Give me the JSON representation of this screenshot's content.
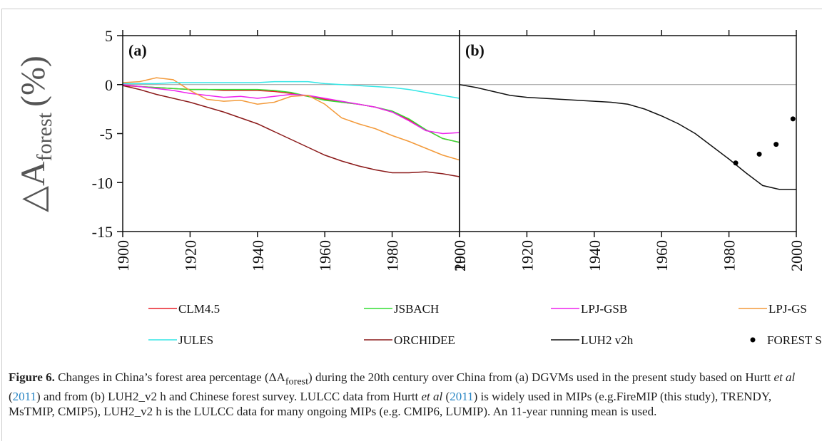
{
  "chart_data": [
    {
      "type": "line",
      "panel_label": "(a)",
      "ylabel": {
        "main": "△A",
        "sub": "forest",
        "unit": "(%)"
      },
      "x": [
        1900,
        1905,
        1910,
        1915,
        1920,
        1925,
        1930,
        1935,
        1940,
        1945,
        1950,
        1955,
        1960,
        1965,
        1970,
        1975,
        1980,
        1985,
        1990,
        1995,
        2000
      ],
      "xlim": [
        1900,
        2000
      ],
      "xticks": [
        1900,
        1920,
        1940,
        1960,
        1980,
        2000
      ],
      "ylim": [
        -15,
        5
      ],
      "yticks": [
        5,
        0,
        -5,
        -10,
        -15
      ],
      "hline": 0,
      "series": [
        {
          "name": "CLM4.5",
          "color": "#e8202a",
          "values": [
            -0.1,
            -0.2,
            -0.3,
            -0.4,
            -0.5,
            -0.5,
            -0.6,
            -0.6,
            -0.6,
            -0.7,
            -0.9,
            -1.2,
            -1.5,
            -1.8,
            -2.0,
            -2.3,
            -2.8,
            -3.6,
            -4.6,
            -5.5,
            -5.9
          ]
        },
        {
          "name": "JSBACH",
          "color": "#33dd33",
          "values": [
            0,
            -0.2,
            -0.3,
            -0.4,
            -0.5,
            -0.5,
            -0.5,
            -0.5,
            -0.5,
            -0.6,
            -0.8,
            -1.2,
            -1.6,
            -1.8,
            -2.0,
            -2.3,
            -2.7,
            -3.5,
            -4.6,
            -5.5,
            -5.9
          ]
        },
        {
          "name": "LPJ-GSB",
          "color": "#ee22ee",
          "values": [
            0,
            -0.2,
            -0.4,
            -0.6,
            -0.9,
            -1.1,
            -1.3,
            -1.2,
            -1.4,
            -1.2,
            -1.0,
            -1.1,
            -1.4,
            -1.7,
            -2.0,
            -2.3,
            -2.8,
            -3.7,
            -4.7,
            -5.0,
            -4.9
          ]
        },
        {
          "name": "LPJ-GS",
          "color": "#f39a3a",
          "values": [
            0.2,
            0.3,
            0.7,
            0.5,
            -0.6,
            -1.5,
            -1.7,
            -1.6,
            -2.0,
            -1.8,
            -1.2,
            -1.1,
            -2.0,
            -3.4,
            -4.0,
            -4.5,
            -5.2,
            -5.8,
            -6.5,
            -7.2,
            -7.7
          ]
        },
        {
          "name": "JULES",
          "color": "#33e6e6",
          "values": [
            0.1,
            0.1,
            0.1,
            0.2,
            0.2,
            0.2,
            0.2,
            0.2,
            0.2,
            0.3,
            0.3,
            0.3,
            0.1,
            0.0,
            -0.1,
            -0.2,
            -0.3,
            -0.5,
            -0.8,
            -1.1,
            -1.4
          ]
        },
        {
          "name": "ORCHIDEE",
          "color": "#8b1a1a",
          "values": [
            -0.1,
            -0.5,
            -1.0,
            -1.4,
            -1.8,
            -2.3,
            -2.8,
            -3.4,
            -4.0,
            -4.8,
            -5.6,
            -6.4,
            -7.2,
            -7.8,
            -8.3,
            -8.7,
            -9.0,
            -9.0,
            -8.9,
            -9.1,
            -9.4
          ]
        }
      ]
    },
    {
      "type": "line",
      "panel_label": "(b)",
      "x": [
        1900,
        1905,
        1910,
        1915,
        1920,
        1925,
        1930,
        1935,
        1940,
        1945,
        1950,
        1955,
        1960,
        1965,
        1970,
        1975,
        1980,
        1985,
        1990,
        1995,
        2000
      ],
      "xlim": [
        1900,
        2000
      ],
      "xticks": [
        1900,
        1920,
        1940,
        1960,
        1980,
        2000
      ],
      "ylim": [
        -15,
        5
      ],
      "hline": 0,
      "series": [
        {
          "name": "LUH2 v2h",
          "color": "#111111",
          "values": [
            0,
            -0.3,
            -0.7,
            -1.1,
            -1.3,
            -1.4,
            -1.5,
            -1.6,
            -1.7,
            -1.8,
            -2.0,
            -2.5,
            -3.2,
            -4.0,
            -5.0,
            -6.3,
            -7.6,
            -9.0,
            -10.3,
            -10.7,
            -10.7
          ]
        },
        {
          "name": "FOREST SURVEY",
          "color": "#000000",
          "marker": "dot",
          "x": [
            1982,
            1989,
            1994,
            1999
          ],
          "values": [
            -8.0,
            -7.1,
            -6.1,
            -3.5
          ]
        }
      ]
    }
  ],
  "caption": {
    "label": "Figure 6.",
    "parts": [
      " Changes in China’s forest area percentage (ΔA",
      "forest",
      ") during the 20th century over China from (a) DGVMs used in the present study based on Hurtt ",
      "et al",
      " (",
      "2011",
      ") and from (b) LUH2_v2 h and Chinese forest survey. LULCC data from Hurtt ",
      "et al",
      " (",
      "2011",
      ") is widely used in MIPs (e.g.FireMIP (this study), TRENDY, MsTMIP, CMIP5), LUH2_v2 h is the LULCC data for many ongoing MIPs (e.g. CMIP6, LUMIP). An 11-year running mean is used."
    ]
  }
}
